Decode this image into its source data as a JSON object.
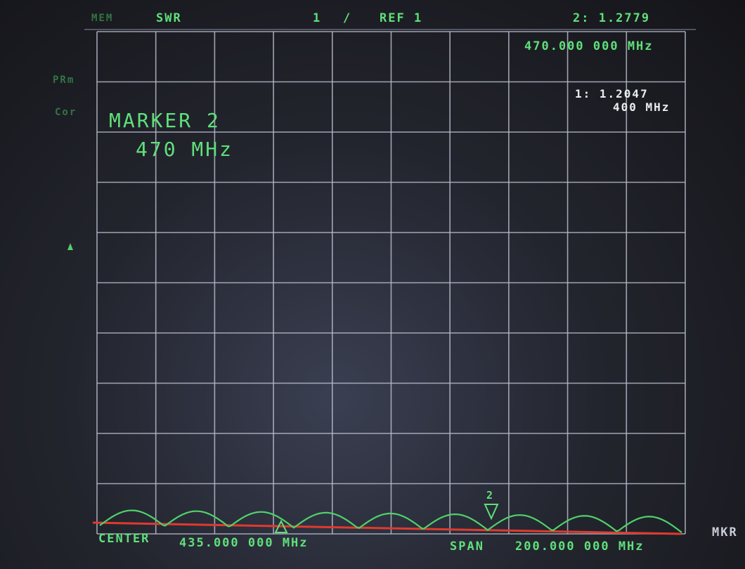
{
  "header": {
    "mem": "MEM",
    "format": "SWR",
    "channel": "1",
    "separator": "/",
    "ref": "REF 1",
    "marker_readout": "2: 1.2779"
  },
  "softkeys": {
    "prm": "PRm",
    "cor": "Cor"
  },
  "marker_freq": "470.000 000 MHz",
  "marker1": {
    "value": "1: 1.2047",
    "freq": "400 MHz"
  },
  "marker_note": {
    "title": "MARKER 2",
    "freq": "470 MHz"
  },
  "footer": {
    "center_label": "CENTER",
    "center": "435.000 000 MHz",
    "span_label": "SPAN",
    "span": "200.000 000 MHz"
  },
  "trace_markers": {
    "m2": "2"
  },
  "side": "MKR"
}
